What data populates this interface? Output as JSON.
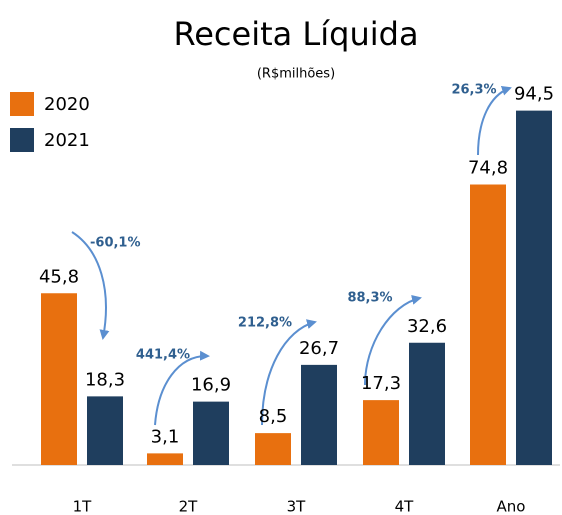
{
  "chart_data": {
    "type": "bar",
    "title": "Receita Líquida",
    "subtitle": "(R$milhões)",
    "categories": [
      "1T",
      "2T",
      "3T",
      "4T",
      "Ano"
    ],
    "series": [
      {
        "name": "2020",
        "color": "#e8700f",
        "values": [
          45.8,
          3.1,
          8.5,
          17.3,
          74.8
        ],
        "value_labels": [
          "45,8",
          "3,1",
          "8,5",
          "17,3",
          "74,8"
        ]
      },
      {
        "name": "2021",
        "color": "#1f3e5e",
        "values": [
          18.3,
          16.9,
          26.7,
          32.6,
          94.5
        ],
        "value_labels": [
          "18,3",
          "16,9",
          "26,7",
          "32,6",
          "94,5"
        ]
      }
    ],
    "annotations": [
      "-60,1%",
      "441,4%",
      "212,8%",
      "88,3%",
      "26,3%"
    ],
    "ylim": [
      0,
      100
    ],
    "grid": false,
    "legend": "top-left"
  }
}
